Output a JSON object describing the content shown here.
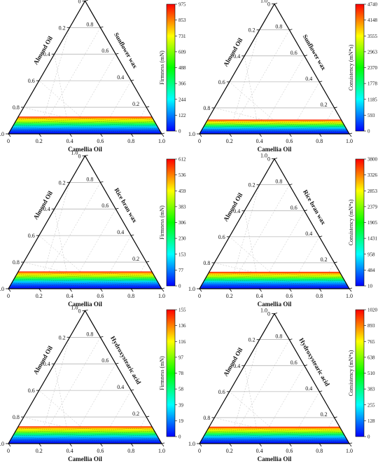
{
  "chart_data": [
    {
      "type": "ternary-contour",
      "panel": 1,
      "axes": {
        "bottom": "Camellia Oil",
        "left": "Almond Oil",
        "right": "Sunflower wax"
      },
      "ticks": [
        "0",
        "0.2",
        "0.4",
        "0.6",
        "0.8",
        "1.0"
      ],
      "colorbar": {
        "title": "Firmness (mN)",
        "ticks": [
          "0",
          "122",
          "244",
          "366",
          "488",
          "609",
          "731",
          "853",
          "975"
        ]
      },
      "colors": [
        "#0000ff",
        "#00ffff",
        "#00ff00",
        "#ffff00",
        "#ff0000"
      ],
      "band_height": 0.13
    },
    {
      "type": "ternary-contour",
      "panel": 2,
      "axes": {
        "bottom": "Camellia Oil",
        "left": "Almond Oil",
        "right": "Sunflower wax"
      },
      "ticks": [
        "0",
        "0.2",
        "0.4",
        "0.6",
        "0.8",
        "1.0"
      ],
      "colorbar": {
        "title": "Consistency (mN*s)",
        "ticks": [
          "0",
          "593",
          "1185",
          "1778",
          "2370",
          "2963",
          "3555",
          "4148",
          "4740"
        ]
      },
      "colors": [
        "#0000ff",
        "#00ffff",
        "#00ff00",
        "#ffff00",
        "#ff0000"
      ],
      "band_height": 0.11
    },
    {
      "type": "ternary-contour",
      "panel": 3,
      "axes": {
        "bottom": "Camellia Oil",
        "left": "Almond Oil",
        "right": "Rice bran wax"
      },
      "ticks": [
        "0",
        "0.2",
        "0.4",
        "0.6",
        "0.8",
        "1.0"
      ],
      "colorbar": {
        "title": "Firmness (mN)",
        "ticks": [
          "0",
          "77",
          "153",
          "230",
          "306",
          "383",
          "459",
          "536",
          "612"
        ]
      },
      "colors": [
        "#0000ff",
        "#00ffff",
        "#00ff00",
        "#ffff00",
        "#ff0000"
      ],
      "band_height": 0.13
    },
    {
      "type": "ternary-contour",
      "panel": 4,
      "axes": {
        "bottom": "Camellia Oil",
        "left": "Almond Oil",
        "right": "Rice bran wax"
      },
      "ticks": [
        "0",
        "0.2",
        "0.4",
        "0.6",
        "0.8",
        "1.0"
      ],
      "colorbar": {
        "title": "Consistency (mN*s)",
        "ticks": [
          "10",
          "484",
          "958",
          "1431",
          "1905",
          "2379",
          "2853",
          "3326",
          "3800"
        ]
      },
      "colors": [
        "#0000ff",
        "#00ffff",
        "#00ff00",
        "#ffff00",
        "#ff0000"
      ],
      "band_height": 0.13
    },
    {
      "type": "ternary-contour",
      "panel": 5,
      "axes": {
        "bottom": "Camellia Oil",
        "left": "Almond Oil",
        "right": "Hydroxystearic acid"
      },
      "ticks": [
        "0",
        "0.2",
        "0.4",
        "0.6",
        "0.8",
        "1.0"
      ],
      "colorbar": {
        "title": "Firmness (mN)",
        "ticks": [
          "0",
          "19",
          "39",
          "58",
          "78",
          "97",
          "116",
          "136",
          "155"
        ]
      },
      "colors": [
        "#0000ff",
        "#00ffff",
        "#00ff00",
        "#ffff00",
        "#ff0000"
      ],
      "band_height": 0.13
    },
    {
      "type": "ternary-contour",
      "panel": 6,
      "axes": {
        "bottom": "Camellia Oil",
        "left": "Almond Oil",
        "right": "Hydroxystearic acid"
      },
      "ticks": [
        "0",
        "0.2",
        "0.4",
        "0.6",
        "0.8",
        "1.0"
      ],
      "colorbar": {
        "title": "Consistency (mN*s)",
        "ticks": [
          "0",
          "128",
          "255",
          "383",
          "510",
          "638",
          "765",
          "893",
          "1020"
        ]
      },
      "colors": [
        "#0000ff",
        "#00ffff",
        "#00ff00",
        "#ffff00",
        "#ff0000"
      ],
      "band_height": 0.13
    }
  ]
}
